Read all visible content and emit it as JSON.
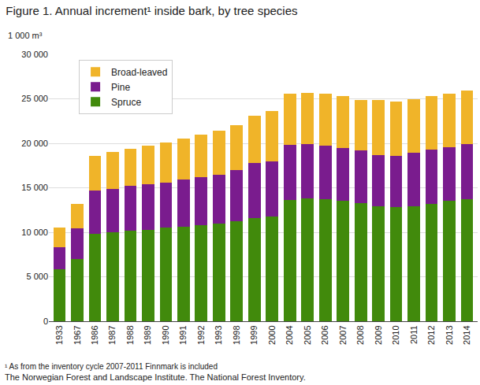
{
  "chart_data": {
    "type": "bar",
    "title": "Figure 1. Annual increment¹ inside bark, by tree species",
    "y_label": "1 000 m³",
    "notes": [
      "¹ As from the inventory cycle 2007-2011 Finnmark is included",
      "The Norwegian Forest and Landscape Institute. The National Forest Inventory."
    ],
    "categories": [
      "1933",
      "1967",
      "1986",
      "1987",
      "1988",
      "1989",
      "1990",
      "1991",
      "1992",
      "1993",
      "1998",
      "1999",
      "2000",
      "2004",
      "2005",
      "2006",
      "2007",
      "2008",
      "2009",
      "2010",
      "2011",
      "2012",
      "2013",
      "2014"
    ],
    "series": [
      {
        "name": "Spruce",
        "color": "#418a0c",
        "values": [
          5800,
          7000,
          9800,
          10000,
          10200,
          10300,
          10500,
          10600,
          10800,
          11000,
          11200,
          11600,
          11800,
          13600,
          13800,
          13700,
          13500,
          13300,
          12900,
          12800,
          12900,
          13200,
          13500,
          13700
        ]
      },
      {
        "name": "Pine",
        "color": "#7a1c8e",
        "values": [
          2500,
          3400,
          4900,
          4900,
          5000,
          5100,
          5100,
          5300,
          5400,
          5500,
          5800,
          6200,
          6200,
          6200,
          6100,
          6000,
          6000,
          5900,
          5800,
          5800,
          6000,
          6100,
          6100,
          6200
        ]
      },
      {
        "name": "Broad-leaved",
        "color": "#f0b429",
        "values": [
          2200,
          2800,
          3900,
          4100,
          4200,
          4300,
          4500,
          4600,
          4800,
          4900,
          5000,
          5300,
          5600,
          5800,
          5800,
          5900,
          5800,
          5700,
          6200,
          6100,
          6100,
          6000,
          6000,
          6000
        ]
      }
    ],
    "stacked": true,
    "ylim": [
      0,
      30000
    ],
    "yticks": [
      0,
      {
        "value": 5000,
        "label": "5 000"
      },
      {
        "value": 10000,
        "label": "10 000"
      },
      {
        "value": 15000,
        "label": "15 000"
      },
      {
        "value": 20000,
        "label": "20 000"
      },
      {
        "value": 25000,
        "label": "25 000"
      },
      {
        "value": 30000,
        "label": "30 000"
      }
    ],
    "grid": true,
    "legend": "upper left"
  }
}
